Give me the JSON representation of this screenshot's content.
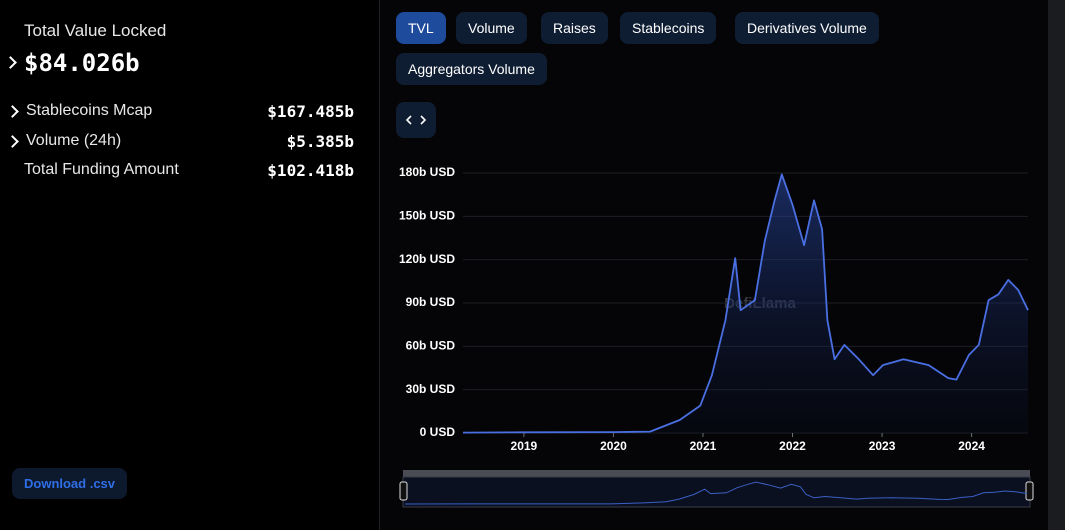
{
  "sidebar": {
    "tvl_label": "Total Value Locked",
    "tvl_value": "$84.026b",
    "metrics": [
      {
        "label": "Stablecoins Mcap",
        "value": "$167.485b"
      },
      {
        "label": "Volume (24h)",
        "value": "$5.385b"
      },
      {
        "label": "Total Funding Amount",
        "value": "$102.418b"
      }
    ],
    "download": "Download .csv"
  },
  "tabs": [
    "TVL",
    "Volume",
    "Raises",
    "Stablecoins",
    "Derivatives Volume",
    "Aggregators Volume"
  ],
  "watermark": "DefiLlama",
  "chart_data": {
    "type": "area",
    "color": "#4a6fe3",
    "grid": true,
    "x": [
      2018.32,
      2019.0,
      2020.0,
      2020.41,
      2020.74,
      2020.97,
      2021.1,
      2021.25,
      2021.36,
      2021.42,
      2021.58,
      2021.69,
      2021.8,
      2021.88,
      2022.0,
      2022.13,
      2022.24,
      2022.33,
      2022.39,
      2022.47,
      2022.58,
      2022.74,
      2022.9,
      2023.01,
      2023.24,
      2023.52,
      2023.74,
      2023.83,
      2023.97,
      2024.08,
      2024.19,
      2024.3,
      2024.41,
      2024.52,
      2024.63
    ],
    "values": [
      0.3,
      0.5,
      0.6,
      1,
      9,
      19,
      40,
      78,
      121,
      85,
      92,
      133,
      161,
      179,
      158,
      130,
      161,
      141,
      78,
      51,
      61,
      51,
      40,
      47,
      51,
      47,
      38,
      37,
      54,
      61,
      92,
      96,
      106,
      99,
      85
    ],
    "xlim": [
      2018.32,
      2024.63
    ],
    "xticks": [
      2019,
      2020,
      2021,
      2022,
      2023,
      2024
    ],
    "ylim": [
      0,
      180
    ],
    "yticks": [
      {
        "value": 0,
        "label": "0 USD"
      },
      {
        "value": 30,
        "label": "30b USD"
      },
      {
        "value": 60,
        "label": "60b USD"
      },
      {
        "value": 90,
        "label": "90b USD"
      },
      {
        "value": 120,
        "label": "120b USD"
      },
      {
        "value": 150,
        "label": "150b USD"
      },
      {
        "value": 180,
        "label": "180b USD"
      }
    ]
  }
}
